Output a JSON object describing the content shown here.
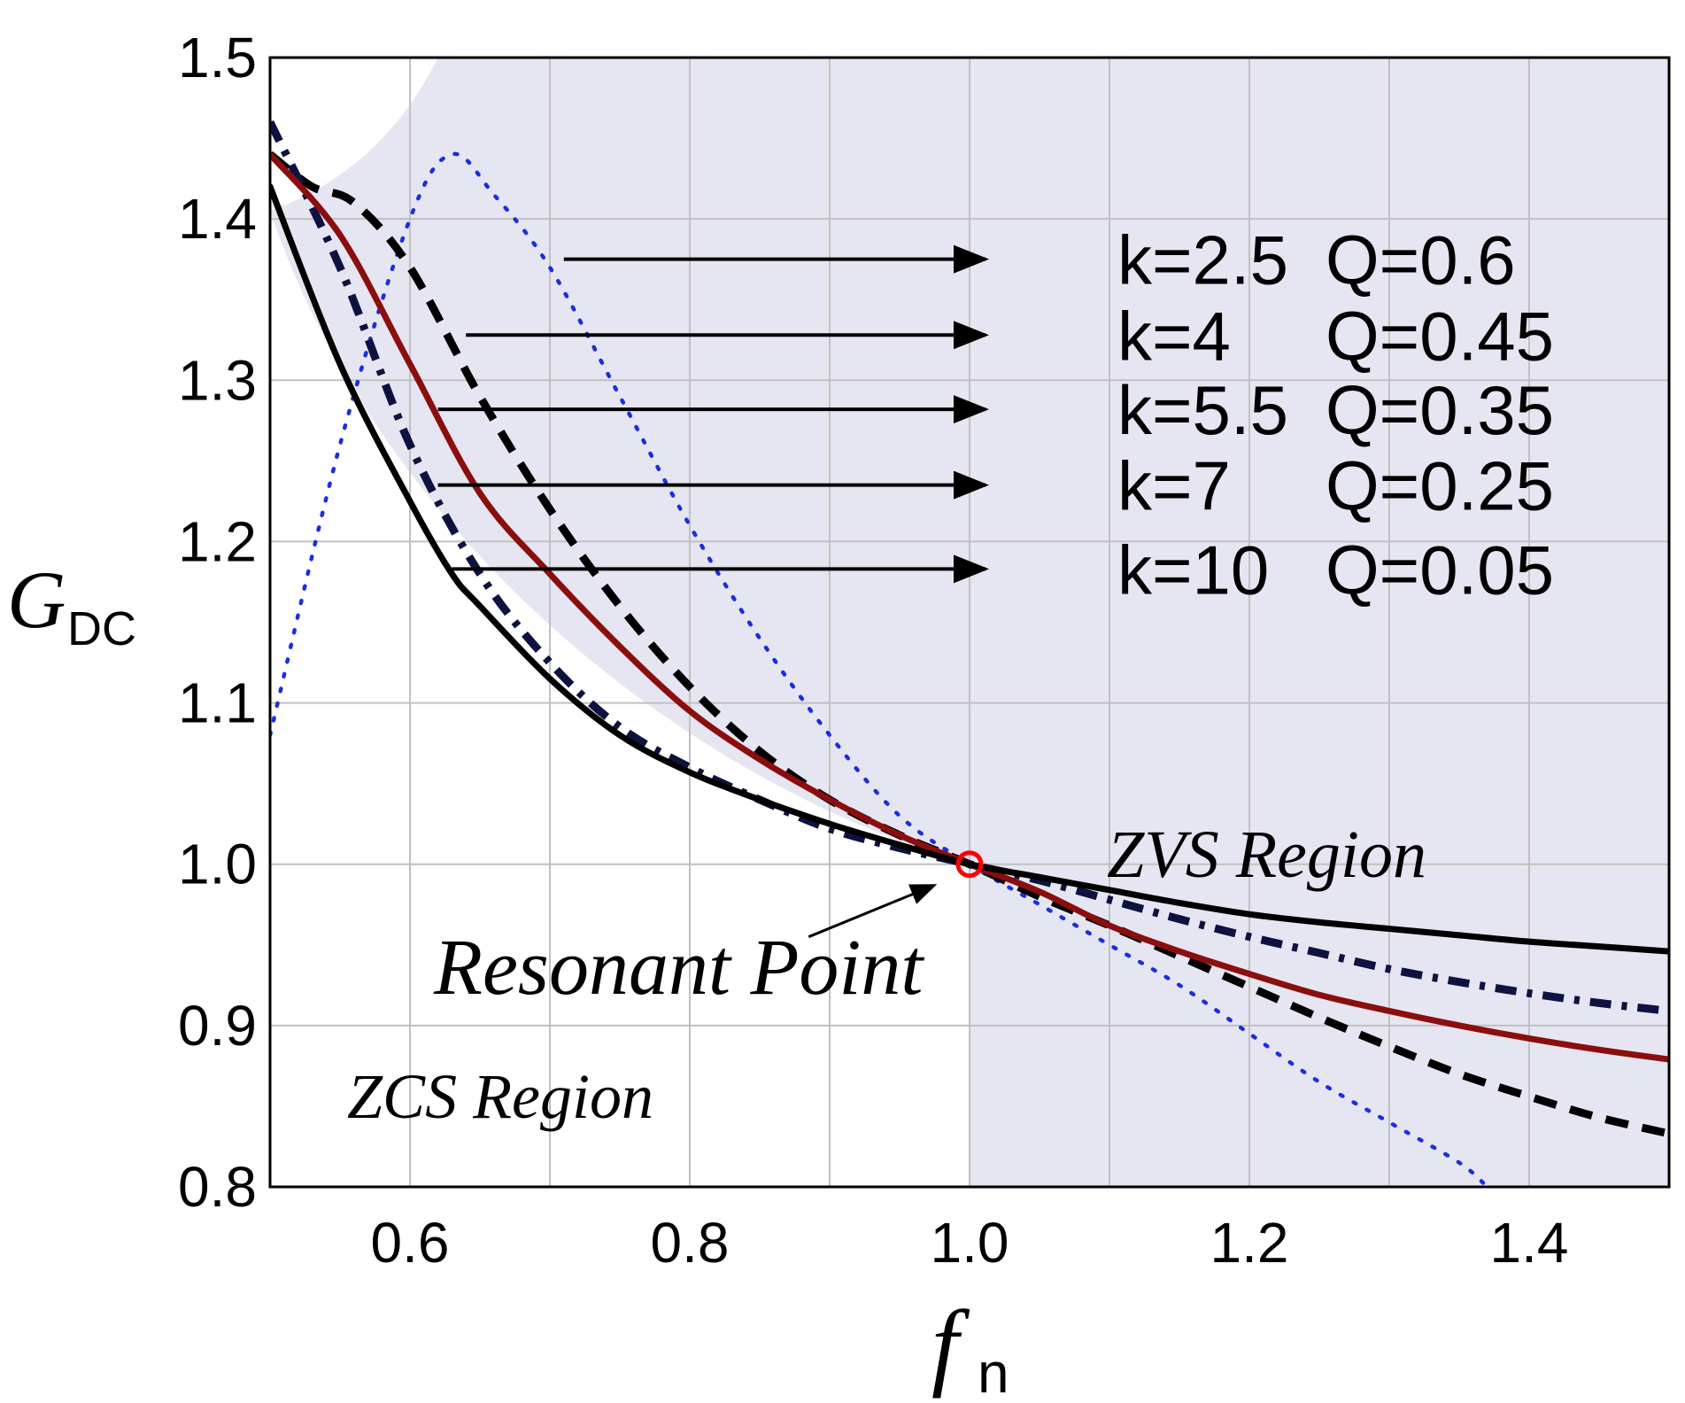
{
  "chart_data": {
    "type": "line",
    "title": "",
    "xlabel": "f",
    "xlabel_sub": "n",
    "ylabel": "G",
    "ylabel_sub": "DC",
    "xlim": [
      0.5,
      1.5
    ],
    "ylim": [
      0.8,
      1.5
    ],
    "grid": true,
    "xticks": [
      0.6,
      0.8,
      1.0,
      1.2,
      1.4
    ],
    "xtick_labels": [
      "0.6",
      "0.8",
      "1.0",
      "1.2",
      "1.4"
    ],
    "yticks": [
      0.8,
      0.9,
      1.0,
      1.1,
      1.2,
      1.3,
      1.4,
      1.5
    ],
    "ytick_labels": [
      "0.8",
      "0.9",
      "1.0",
      "1.1",
      "1.2",
      "1.3",
      "1.4",
      "1.5"
    ],
    "colors": {
      "zvs_fill": "#e6e6f2",
      "grid": "#c0c0c0",
      "black": "#000000",
      "navy": "#0d1240",
      "dark_red": "#8b0e0e",
      "blue": "#1a2ee0",
      "marker": "#ff0000"
    },
    "series": [
      {
        "name": "k=2.5 Q=0.6",
        "k": "k=2.5",
        "q": "Q=0.6",
        "style": "dotted",
        "color": "#1a2ee0",
        "x": [
          0.5,
          0.55,
          0.6,
          0.63,
          0.66,
          0.7,
          0.75,
          0.8,
          0.85,
          0.9,
          0.95,
          1.0,
          1.05,
          1.1,
          1.15,
          1.2,
          1.25,
          1.3,
          1.35,
          1.37
        ],
        "y": [
          1.08,
          1.26,
          1.4,
          1.44,
          1.415,
          1.37,
          1.29,
          1.21,
          1.14,
          1.08,
          1.03,
          1.0,
          0.975,
          0.95,
          0.925,
          0.895,
          0.865,
          0.84,
          0.815,
          0.8
        ]
      },
      {
        "name": "k=4 Q=0.45",
        "k": "k=4",
        "q": "Q=0.45",
        "style": "dashed",
        "color": "#000000",
        "x": [
          0.5,
          0.53,
          0.56,
          0.6,
          0.65,
          0.7,
          0.75,
          0.8,
          0.85,
          0.9,
          0.95,
          1.0,
          1.05,
          1.1,
          1.15,
          1.2,
          1.25,
          1.3,
          1.35,
          1.4,
          1.45,
          1.5
        ],
        "y": [
          1.44,
          1.42,
          1.41,
          1.37,
          1.29,
          1.22,
          1.16,
          1.11,
          1.07,
          1.04,
          1.018,
          1.0,
          0.98,
          0.962,
          0.943,
          0.924,
          0.905,
          0.887,
          0.87,
          0.856,
          0.843,
          0.833
        ]
      },
      {
        "name": "k=5.5 Q=0.35",
        "k": "k=5.5",
        "q": "Q=0.35",
        "style": "dashdot",
        "color": "#0d1240",
        "x": [
          0.5,
          0.55,
          0.6,
          0.65,
          0.7,
          0.75,
          0.8,
          0.85,
          0.9,
          0.95,
          1.0,
          1.05,
          1.1,
          1.15,
          1.2,
          1.25,
          1.3,
          1.35,
          1.4,
          1.45,
          1.5
        ],
        "y": [
          1.46,
          1.37,
          1.26,
          1.18,
          1.125,
          1.085,
          1.06,
          1.04,
          1.022,
          1.01,
          1.0,
          0.99,
          0.978,
          0.966,
          0.955,
          0.945,
          0.935,
          0.927,
          0.92,
          0.914,
          0.909
        ]
      },
      {
        "name": "k=7 Q=0.25",
        "k": "k=7",
        "q": "Q=0.25",
        "style": "solid",
        "color": "#8b0e0e",
        "x": [
          0.5,
          0.55,
          0.6,
          0.65,
          0.7,
          0.75,
          0.8,
          0.85,
          0.9,
          0.95,
          1.0,
          1.05,
          1.1,
          1.15,
          1.2,
          1.25,
          1.3,
          1.35,
          1.4,
          1.45,
          1.5
        ],
        "y": [
          1.44,
          1.39,
          1.31,
          1.23,
          1.18,
          1.135,
          1.095,
          1.065,
          1.04,
          1.018,
          1.0,
          0.983,
          0.962,
          0.946,
          0.932,
          0.919,
          0.909,
          0.9,
          0.892,
          0.885,
          0.879
        ]
      },
      {
        "name": "k=10 Q=0.05",
        "k": "k=10",
        "q": "Q=0.05",
        "style": "solid",
        "color": "#000000",
        "x": [
          0.5,
          0.55,
          0.6,
          0.63,
          0.65,
          0.7,
          0.75,
          0.8,
          0.85,
          0.9,
          0.95,
          1.0,
          1.05,
          1.1,
          1.15,
          1.2,
          1.25,
          1.3,
          1.35,
          1.4,
          1.45,
          1.5
        ],
        "y": [
          1.42,
          1.31,
          1.225,
          1.18,
          1.16,
          1.115,
          1.08,
          1.057,
          1.04,
          1.025,
          1.012,
          1.0,
          0.992,
          0.984,
          0.976,
          0.969,
          0.964,
          0.96,
          0.956,
          0.952,
          0.949,
          0.946
        ]
      }
    ],
    "legend_arrow_start_x": [
      0.71,
      0.64,
      0.62,
      0.62,
      0.63
    ],
    "legend_arrow_end_x": [
      1.0,
      1.0,
      1.0,
      1.0,
      1.0
    ],
    "legend_arrow_y": [
      1.375,
      1.328,
      1.282,
      1.235,
      1.183
    ],
    "annotations": {
      "zvs_label": "ZVS Region",
      "zcs_label": "ZCS Region",
      "resonant_label": "Resonant Point",
      "resonant_point": [
        1.0,
        1.0
      ]
    }
  }
}
